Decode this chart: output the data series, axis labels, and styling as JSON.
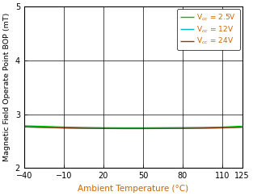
{
  "title": "",
  "xlabel": "Ambient Temperature (°C)",
  "ylabel": "Magnetic Field Operate Point BOP (mT)",
  "xlim": [
    -40,
    125
  ],
  "ylim": [
    2,
    5
  ],
  "xticks": [
    -40,
    -10,
    20,
    50,
    80,
    110,
    125
  ],
  "yticks": [
    2,
    3,
    4,
    5
  ],
  "grid": true,
  "lines": [
    {
      "color": "#00bb00",
      "x": [
        -40,
        -25,
        -10,
        5,
        20,
        35,
        50,
        65,
        80,
        95,
        110,
        125
      ],
      "y": [
        2.785,
        2.775,
        2.762,
        2.755,
        2.75,
        2.748,
        2.748,
        2.75,
        2.752,
        2.755,
        2.762,
        2.778
      ]
    },
    {
      "color": "#00bbbb",
      "x": [
        -40,
        -25,
        -10,
        5,
        20,
        35,
        50,
        65,
        80,
        95,
        110,
        125
      ],
      "y": [
        2.768,
        2.758,
        2.748,
        2.742,
        2.738,
        2.736,
        2.736,
        2.738,
        2.74,
        2.744,
        2.75,
        2.762
      ]
    },
    {
      "color": "#8B3A0A",
      "x": [
        -40,
        -25,
        -10,
        5,
        20,
        35,
        50,
        65,
        80,
        95,
        110,
        125
      ],
      "y": [
        2.766,
        2.756,
        2.746,
        2.74,
        2.736,
        2.734,
        2.734,
        2.736,
        2.738,
        2.742,
        2.748,
        2.76
      ]
    }
  ],
  "legend_labels": [
    "V$_{cc}$ = 2.5V",
    "V$_{cc}$ = 12V",
    "V$_{cc}$ = 24V"
  ],
  "legend_colors": [
    "#00bb00",
    "#00bbbb",
    "#8B3A0A"
  ],
  "label_color": "#cc6600",
  "tick_color": "#000000",
  "linewidth": 1.0,
  "xlabel_fontsize": 7.5,
  "ylabel_fontsize": 6.8,
  "tick_fontsize": 7,
  "legend_fontsize": 6.5
}
